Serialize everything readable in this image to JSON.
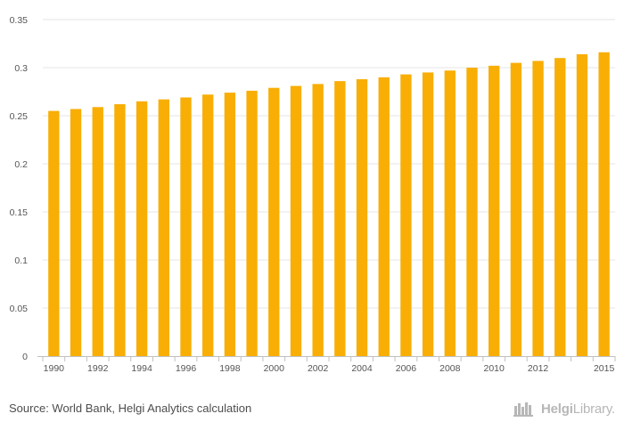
{
  "colors": {
    "bar": "#f8ae04",
    "grid": "#e6e6e6",
    "axis": "#c0c0c0",
    "text": "#555555",
    "brand": "#b7b7b7"
  },
  "chart_data": {
    "type": "bar",
    "categories": [
      "1990",
      "1991",
      "1992",
      "1993",
      "1994",
      "1995",
      "1996",
      "1997",
      "1998",
      "1999",
      "2000",
      "2001",
      "2002",
      "2003",
      "2004",
      "2005",
      "2006",
      "2007",
      "2008",
      "2009",
      "2010",
      "2011",
      "2012",
      "2013",
      "2014",
      "2015"
    ],
    "values": [
      0.255,
      0.257,
      0.259,
      0.262,
      0.265,
      0.267,
      0.269,
      0.272,
      0.274,
      0.276,
      0.279,
      0.281,
      0.283,
      0.286,
      0.288,
      0.29,
      0.293,
      0.295,
      0.297,
      0.3,
      0.302,
      0.305,
      0.307,
      0.31,
      0.314,
      0.316
    ],
    "x_tick_labels": [
      "1990",
      "1992",
      "1994",
      "1996",
      "1998",
      "2000",
      "2002",
      "2004",
      "2006",
      "2008",
      "2010",
      "2012",
      "2015"
    ],
    "y_ticks": [
      0,
      0.05,
      0.1,
      0.15,
      0.2,
      0.25,
      0.3,
      0.35
    ],
    "y_tick_labels": [
      "0",
      "0.05",
      "0.1",
      "0.15",
      "0.2",
      "0.25",
      "0.3",
      "0.35"
    ],
    "ylim": [
      0,
      0.35
    ],
    "grid": true,
    "legend": "none",
    "title": "",
    "xlabel": "",
    "ylabel": ""
  },
  "footer": {
    "source": "Source: World Bank, Helgi Analytics calculation",
    "brand_bold": "Helgi",
    "brand_light": "Library."
  }
}
